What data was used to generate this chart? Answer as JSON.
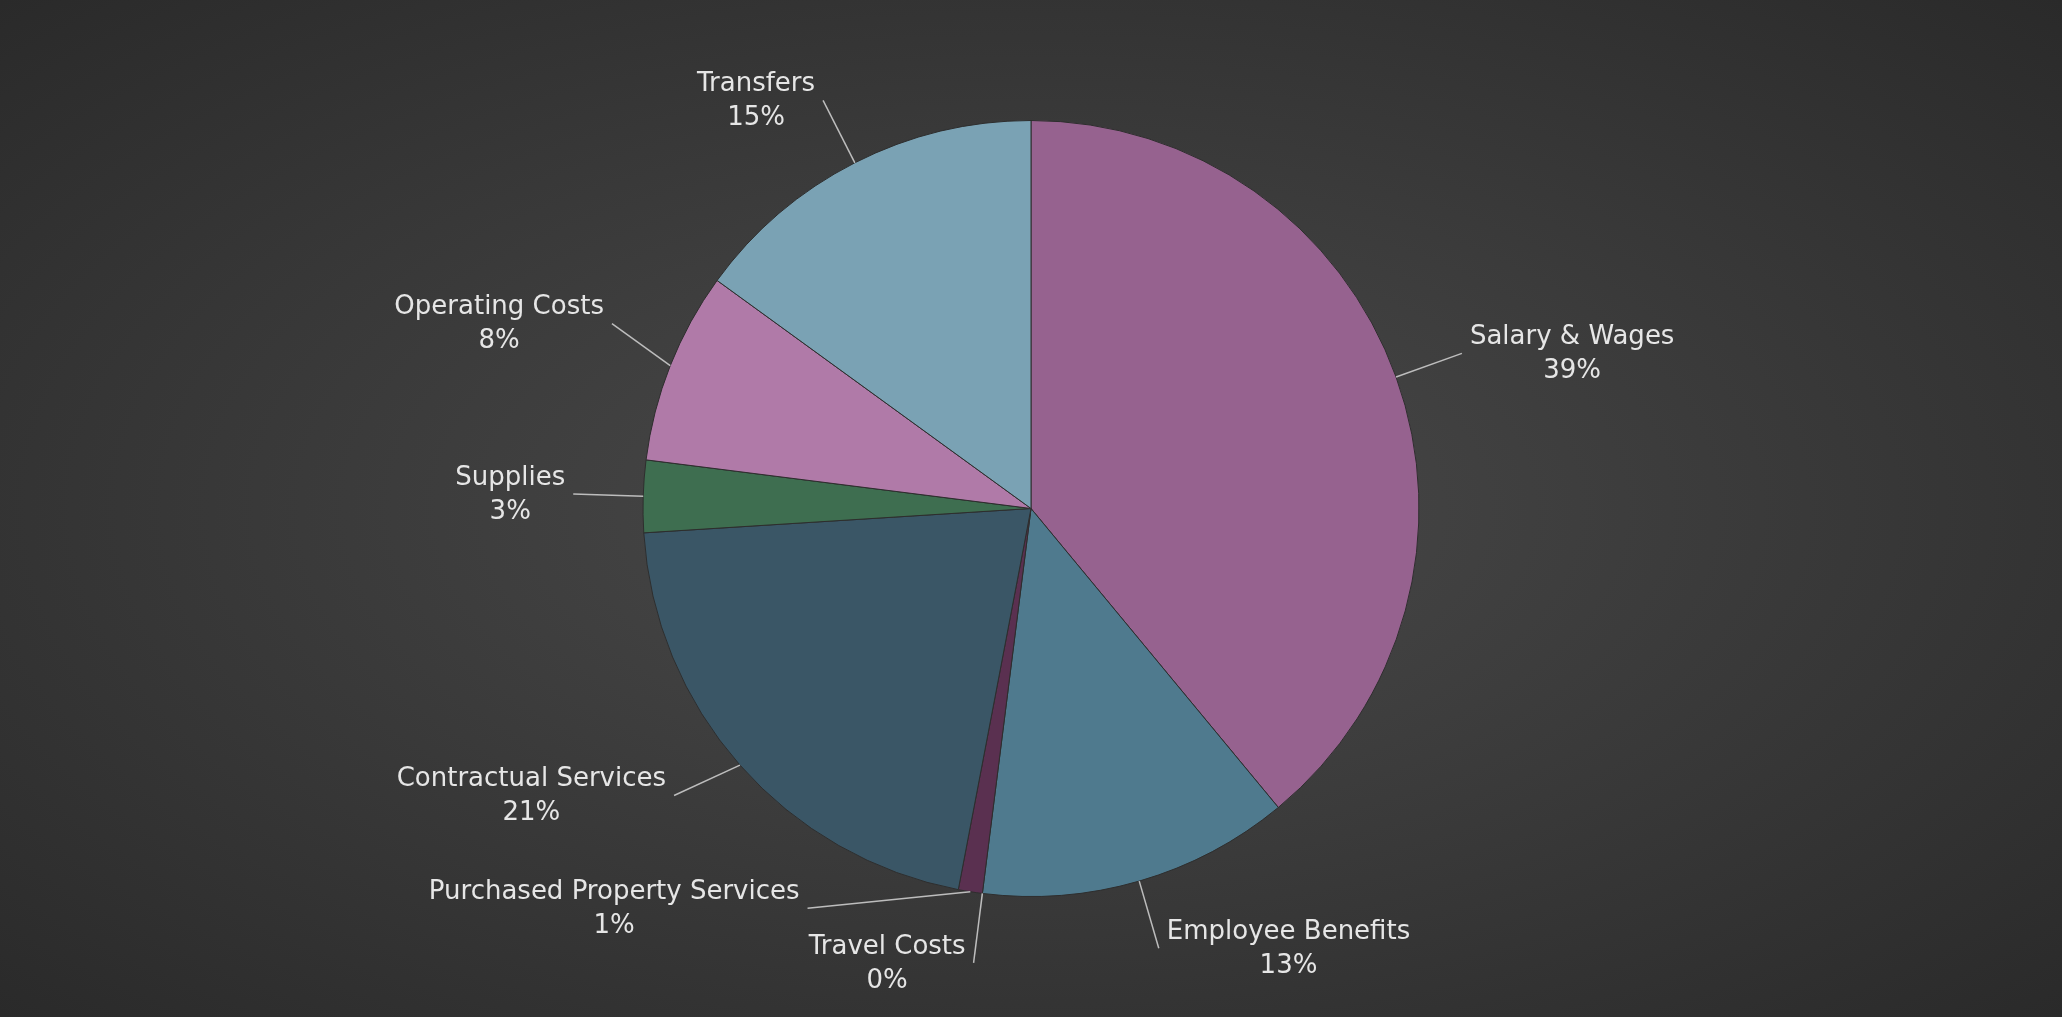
{
  "chart_data": {
    "type": "pie",
    "categories": [
      "Salary & Wages",
      "Employee Benefits",
      "Travel Costs",
      "Purchased Property Services",
      "Contractual Services",
      "Supplies",
      "Operating Costs",
      "Transfers"
    ],
    "values": [
      39,
      13,
      0,
      1,
      21,
      3,
      8,
      15
    ],
    "value_labels": [
      "39%",
      "13%",
      "0%",
      "1%",
      "21%",
      "3%",
      "8%",
      "15%"
    ],
    "colors": [
      "#96628f",
      "#4f7a8e",
      "#5a9a78",
      "#5a3050",
      "#3a5666",
      "#3e6e50",
      "#b07aa8",
      "#7aa2b4"
    ],
    "legend": false
  }
}
